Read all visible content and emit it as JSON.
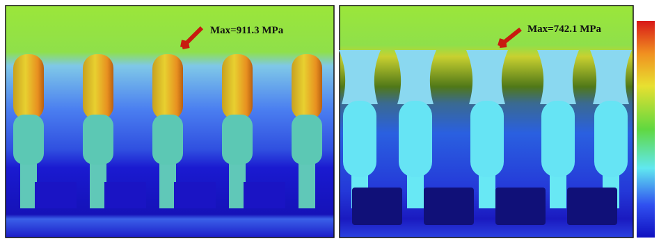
{
  "panels": [
    {
      "annotation": "Max=911.3 MPa"
    },
    {
      "annotation": "Max=742.1 MPa"
    }
  ]
}
